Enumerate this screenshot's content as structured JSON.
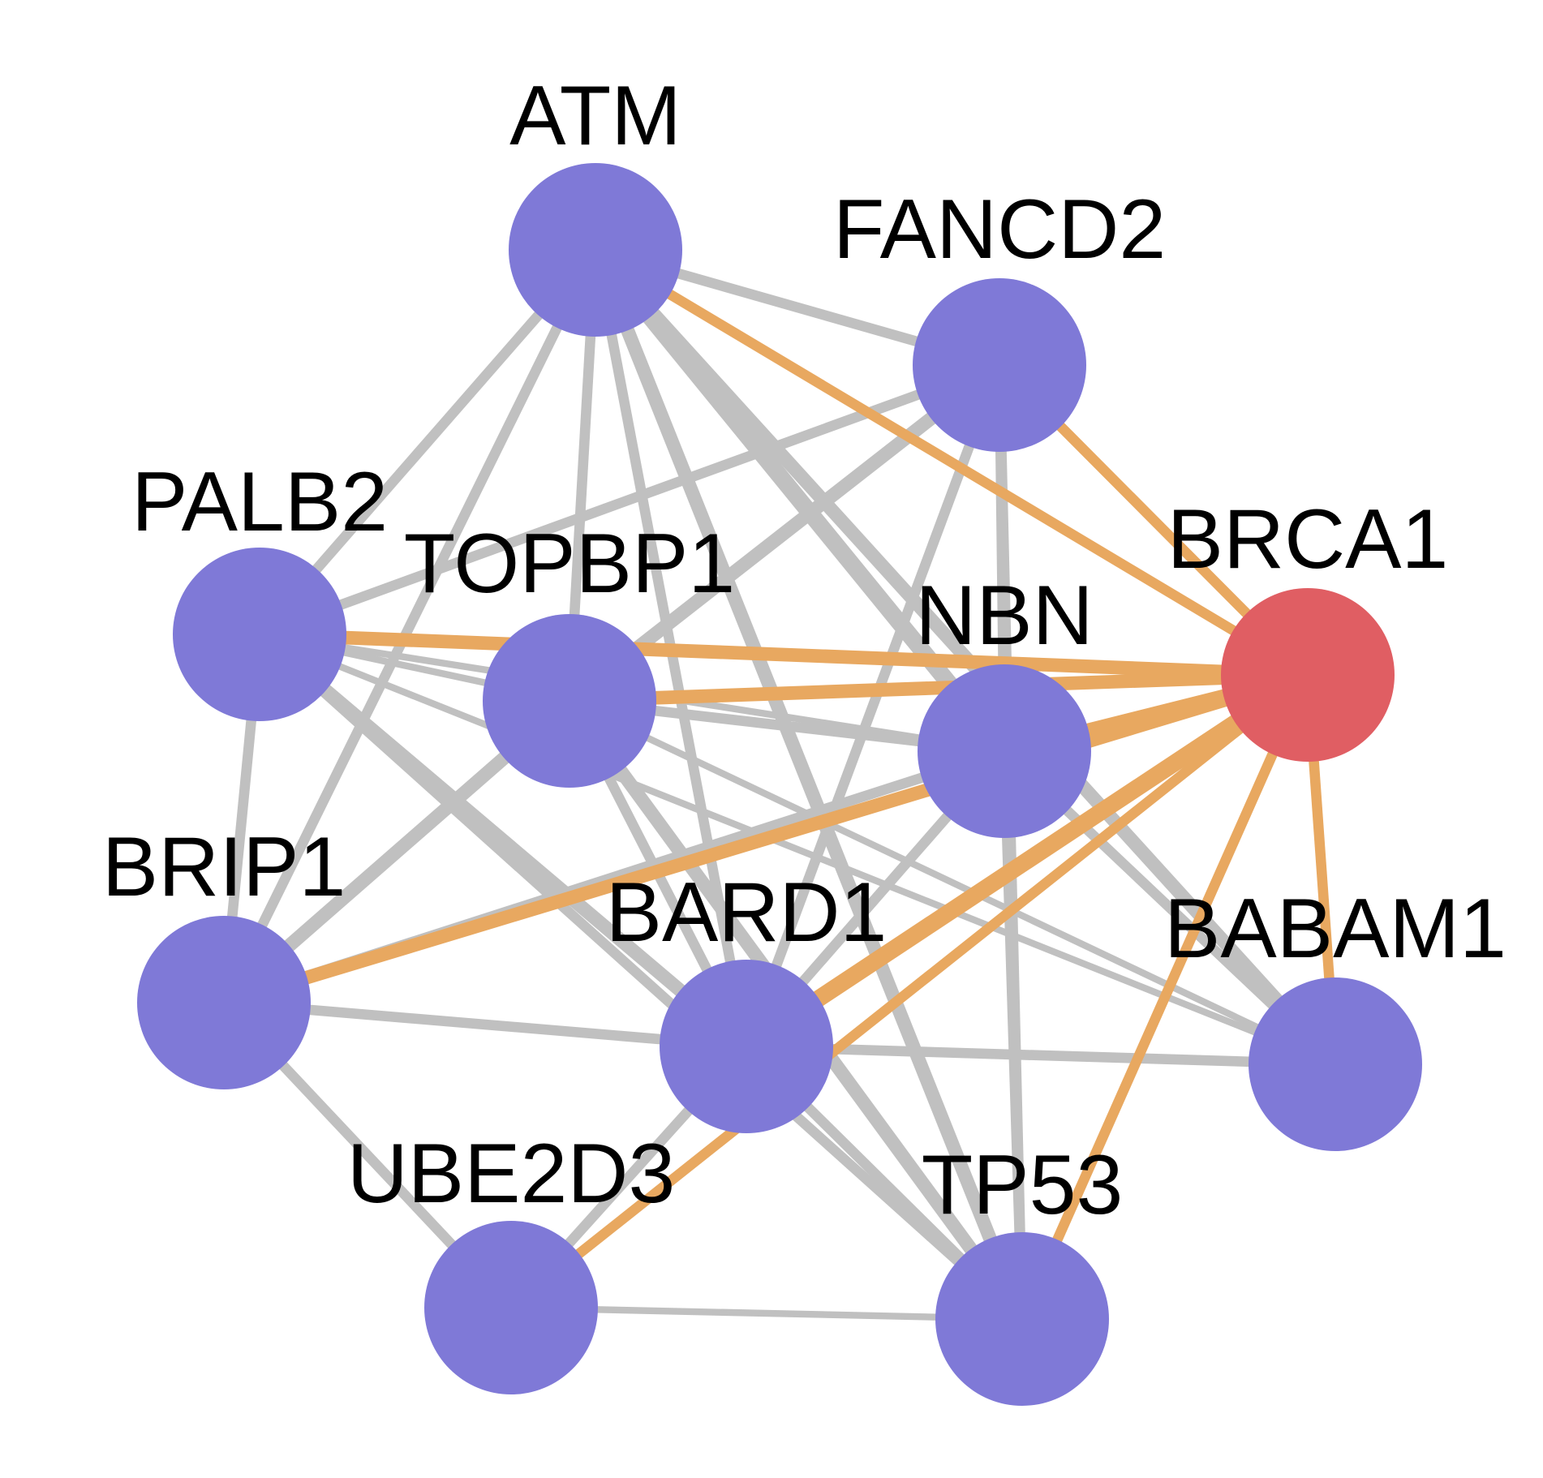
{
  "diagram": {
    "type": "network",
    "colors": {
      "hub_node": "#e05e63",
      "node": "#7f79d7",
      "hub_edge": "#e8a860",
      "edge": "#c0c0c0",
      "label": "#000000",
      "background": "#ffffff"
    },
    "hub": "BRCA1",
    "nodes": [
      {
        "id": "ATM",
        "label": "ATM"
      },
      {
        "id": "FANCD2",
        "label": "FANCD2"
      },
      {
        "id": "PALB2",
        "label": "PALB2"
      },
      {
        "id": "TOPBP1",
        "label": "TOPBP1"
      },
      {
        "id": "NBN",
        "label": "NBN"
      },
      {
        "id": "BRCA1",
        "label": "BRCA1"
      },
      {
        "id": "BRIP1",
        "label": "BRIP1"
      },
      {
        "id": "BARD1",
        "label": "BARD1"
      },
      {
        "id": "BABAM1",
        "label": "BABAM1"
      },
      {
        "id": "UBE2D3",
        "label": "UBE2D3"
      },
      {
        "id": "TP53",
        "label": "TP53"
      }
    ],
    "edges": [
      {
        "source": "ATM",
        "target": "FANCD2",
        "weight": 3
      },
      {
        "source": "ATM",
        "target": "PALB2",
        "weight": 3
      },
      {
        "source": "ATM",
        "target": "TOPBP1",
        "weight": 3
      },
      {
        "source": "ATM",
        "target": "NBN",
        "weight": 5
      },
      {
        "source": "ATM",
        "target": "BRIP1",
        "weight": 3
      },
      {
        "source": "ATM",
        "target": "BARD1",
        "weight": 3
      },
      {
        "source": "ATM",
        "target": "BABAM1",
        "weight": 4
      },
      {
        "source": "ATM",
        "target": "TP53",
        "weight": 4
      },
      {
        "source": "ATM",
        "target": "BRCA1",
        "weight": 3
      },
      {
        "source": "FANCD2",
        "target": "PALB2",
        "weight": 3
      },
      {
        "source": "FANCD2",
        "target": "TOPBP1",
        "weight": 4
      },
      {
        "source": "FANCD2",
        "target": "NBN",
        "weight": 3
      },
      {
        "source": "FANCD2",
        "target": "BARD1",
        "weight": 3
      },
      {
        "source": "FANCD2",
        "target": "TP53",
        "weight": 3
      },
      {
        "source": "FANCD2",
        "target": "BRCA1",
        "weight": 3
      },
      {
        "source": "PALB2",
        "target": "TOPBP1",
        "weight": 2
      },
      {
        "source": "PALB2",
        "target": "NBN",
        "weight": 2
      },
      {
        "source": "PALB2",
        "target": "BRIP1",
        "weight": 3
      },
      {
        "source": "PALB2",
        "target": "BARD1",
        "weight": 4
      },
      {
        "source": "PALB2",
        "target": "BABAM1",
        "weight": 2
      },
      {
        "source": "PALB2",
        "target": "TP53",
        "weight": 3
      },
      {
        "source": "PALB2",
        "target": "BRCA1",
        "weight": 4
      },
      {
        "source": "TOPBP1",
        "target": "NBN",
        "weight": 3
      },
      {
        "source": "TOPBP1",
        "target": "BRIP1",
        "weight": 4
      },
      {
        "source": "TOPBP1",
        "target": "BARD1",
        "weight": 3
      },
      {
        "source": "TOPBP1",
        "target": "BABAM1",
        "weight": 2
      },
      {
        "source": "TOPBP1",
        "target": "TP53",
        "weight": 4
      },
      {
        "source": "TOPBP1",
        "target": "BRCA1",
        "weight": 4
      },
      {
        "source": "NBN",
        "target": "BRIP1",
        "weight": 3
      },
      {
        "source": "NBN",
        "target": "BARD1",
        "weight": 3
      },
      {
        "source": "NBN",
        "target": "BABAM1",
        "weight": 3
      },
      {
        "source": "NBN",
        "target": "TP53",
        "weight": 3
      },
      {
        "source": "NBN",
        "target": "BRCA1",
        "weight": 4
      },
      {
        "source": "BRIP1",
        "target": "BARD1",
        "weight": 3
      },
      {
        "source": "BRIP1",
        "target": "UBE2D3",
        "weight": 3
      },
      {
        "source": "BRIP1",
        "target": "BRCA1",
        "weight": 4
      },
      {
        "source": "BARD1",
        "target": "BABAM1",
        "weight": 3
      },
      {
        "source": "BARD1",
        "target": "UBE2D3",
        "weight": 3
      },
      {
        "source": "BARD1",
        "target": "TP53",
        "weight": 3
      },
      {
        "source": "BARD1",
        "target": "BRCA1",
        "weight": 5
      },
      {
        "source": "BABAM1",
        "target": "BRCA1",
        "weight": 3
      },
      {
        "source": "UBE2D3",
        "target": "TP53",
        "weight": 2
      },
      {
        "source": "UBE2D3",
        "target": "BRCA1",
        "weight": 3
      },
      {
        "source": "TP53",
        "target": "BRCA1",
        "weight": 3
      }
    ]
  }
}
